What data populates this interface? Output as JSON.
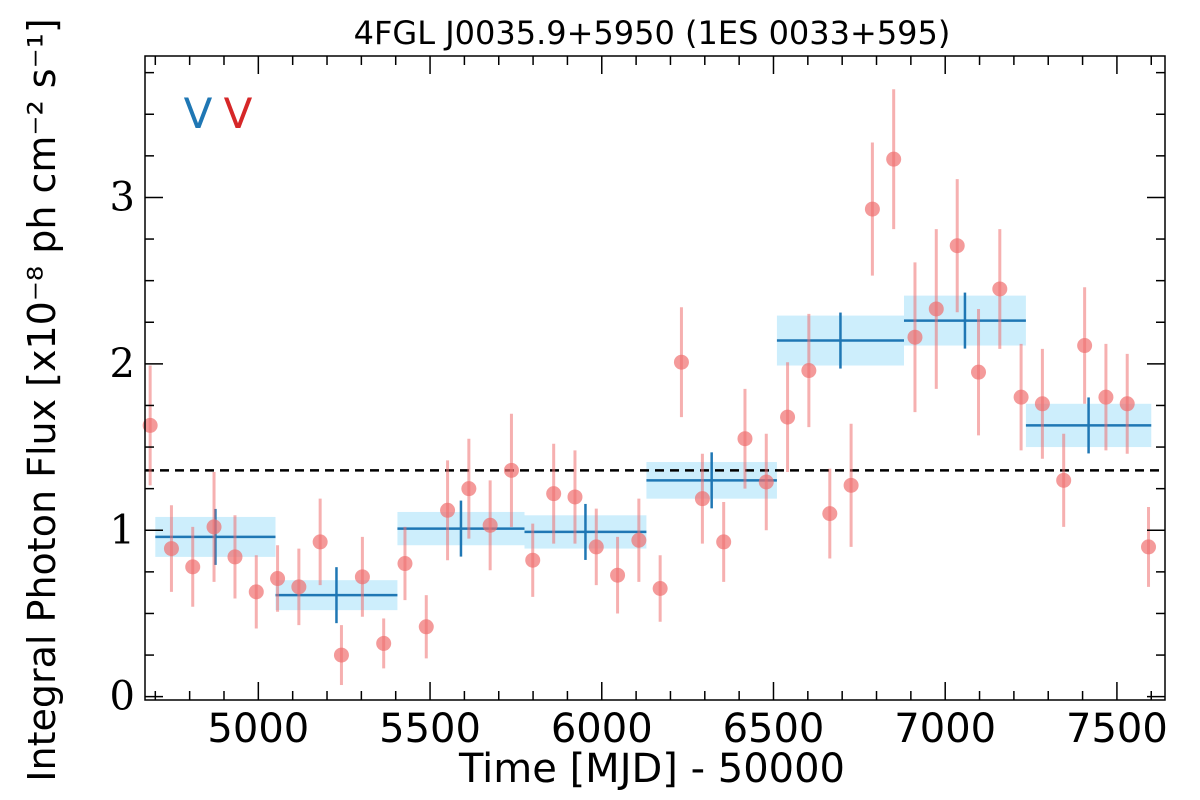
{
  "chart_data": {
    "type": "scatter",
    "title": "4FGL J0035.9+5950 (1ES 0033+595)",
    "xlabel": "Time [MJD] - 50000",
    "ylabel": "Integral Photon Flux [x10⁻⁸ ph cm⁻² s⁻¹]",
    "xlim": [
      4670,
      7640
    ],
    "ylim": [
      -0.02,
      3.85
    ],
    "x_ticks": [
      5000,
      5500,
      6000,
      6500,
      7000,
      7500
    ],
    "x_tick_labels": [
      "5000",
      "5500",
      "6000",
      "6500",
      "7000",
      "7500"
    ],
    "y_ticks": [
      0,
      1,
      2,
      3
    ],
    "y_tick_labels": [
      "0",
      "1",
      "2",
      "3"
    ],
    "grid": false,
    "reference_level": 1.36,
    "markers": [
      {
        "label": "V",
        "color": "#1f77b4"
      },
      {
        "label": "V",
        "color": "#d62728"
      }
    ],
    "series": [
      {
        "kind": "points",
        "color": "#ef6f6f",
        "x": [
          4685,
          4747,
          4809,
          4871,
          4932,
          4994,
          5056,
          5118,
          5180,
          5242,
          5303,
          5365,
          5427,
          5489,
          5551,
          5613,
          5675,
          5737,
          5799,
          5860,
          5922,
          5984,
          6046,
          6108,
          6170,
          6232,
          6293,
          6355,
          6417,
          6479,
          6541,
          6603,
          6664,
          6726,
          6788,
          6850,
          6912,
          6974,
          7035,
          7097,
          7159,
          7221,
          7283,
          7345,
          7406,
          7468,
          7530,
          7592
        ],
        "y": [
          1.63,
          0.89,
          0.78,
          1.02,
          0.84,
          0.63,
          0.71,
          0.66,
          0.93,
          0.25,
          0.72,
          0.32,
          0.8,
          0.42,
          1.12,
          1.25,
          1.03,
          1.36,
          0.82,
          1.22,
          1.2,
          0.9,
          0.73,
          0.94,
          0.65,
          2.01,
          1.19,
          0.93,
          1.55,
          1.29,
          1.68,
          1.96,
          1.1,
          1.27,
          2.93,
          3.23,
          2.16,
          2.33,
          2.71,
          1.95,
          2.45,
          1.8,
          1.76,
          1.3,
          2.11,
          1.8,
          1.76,
          0.9
        ],
        "yerr": [
          0.36,
          0.26,
          0.24,
          0.33,
          0.25,
          0.22,
          0.2,
          0.23,
          0.26,
          0.18,
          0.24,
          0.15,
          0.22,
          0.19,
          0.3,
          0.3,
          0.27,
          0.34,
          0.22,
          0.3,
          0.28,
          0.23,
          0.23,
          0.25,
          0.2,
          0.33,
          0.27,
          0.24,
          0.3,
          0.29,
          0.33,
          0.34,
          0.27,
          0.37,
          0.4,
          0.42,
          0.45,
          0.48,
          0.4,
          0.38,
          0.36,
          0.32,
          0.33,
          0.28,
          0.35,
          0.32,
          0.3,
          0.24
        ]
      },
      {
        "kind": "bins",
        "color": "#1f77b4",
        "fill": "#cdeefc",
        "x_start": [
          4700,
          5050,
          5405,
          5775,
          6130,
          6510,
          6880,
          7235
        ],
        "x_end": [
          5050,
          5405,
          5775,
          6130,
          6510,
          6880,
          7235,
          7600
        ],
        "y": [
          0.96,
          0.61,
          1.01,
          0.99,
          1.3,
          2.14,
          2.26,
          1.63
        ],
        "yerr": [
          0.12,
          0.09,
          0.1,
          0.1,
          0.11,
          0.15,
          0.15,
          0.13
        ]
      }
    ]
  }
}
